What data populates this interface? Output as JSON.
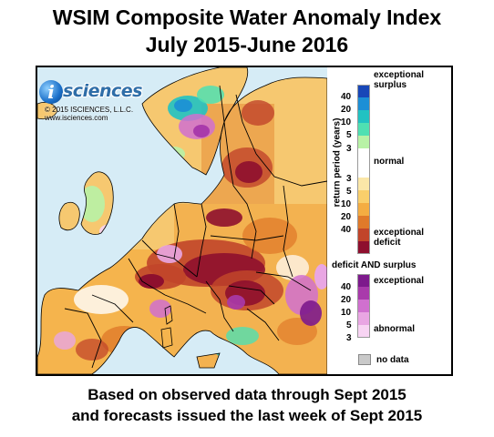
{
  "title": {
    "line1": "WSIM Composite Water Anomaly Index",
    "line2": "July 2015-June 2016"
  },
  "logo": {
    "brand_initial": "i",
    "brand_word": "sciences",
    "copyright": "© 2015 ISCIENCES, L.L.C.",
    "url": "www.isciences.com"
  },
  "legend": {
    "axis_title": "return period (years)",
    "surplus_label_1": "exceptional",
    "surplus_label_2": "surplus",
    "surplus_ticks": [
      "40",
      "20",
      "10",
      "5",
      "3"
    ],
    "surplus_colors": [
      "#1847b8",
      "#1c8fd6",
      "#21c2c2",
      "#4fe0b2",
      "#b8f2a6"
    ],
    "normal_label": "normal",
    "normal_color": "#ffffff",
    "deficit_ticks": [
      "3",
      "5",
      "10",
      "20",
      "40"
    ],
    "deficit_colors": [
      "#fbe7a8",
      "#f9cf6b",
      "#f4ad42",
      "#e07a2a",
      "#c1452a",
      "#8e0f2e"
    ],
    "deficit_label_1": "exceptional",
    "deficit_label_2": "deficit",
    "both_title": "deficit AND surplus",
    "both_top_label": "exceptional",
    "both_ticks": [
      "40",
      "20",
      "10",
      "5",
      "3"
    ],
    "both_colors": [
      "#7d1a8c",
      "#a93aab",
      "#d070cf",
      "#e9a6e3",
      "#f8d4f3"
    ],
    "both_bottom_label": "abnormal",
    "nodata_label": "no data",
    "nodata_color": "#c9c9c9"
  },
  "map_colors": {
    "water": "#d6ecf6",
    "land_base": "#f6c870",
    "border": "#000000"
  },
  "footer": {
    "line1": "Based on observed data through Sept 2015",
    "line2": "and forecasts issued the last week of Sept 2015"
  }
}
